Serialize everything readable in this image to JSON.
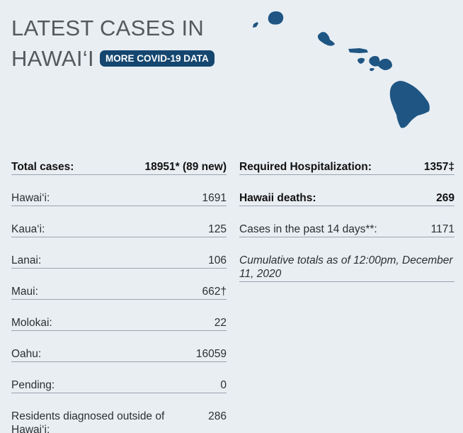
{
  "header": {
    "title_line1": "LATEST CASES IN",
    "title_line2": "HAWAI‘I",
    "more_button": "MORE COVID-19 DATA"
  },
  "map": {
    "icon": "hawaii-islands-map",
    "color": "#1e5583"
  },
  "left_rows": [
    {
      "label": "Total cases:",
      "value": "18951* (89 new)",
      "bold": true
    },
    {
      "label": "Hawai‘i:",
      "value": "1691"
    },
    {
      "label": "Kaua‘i:",
      "value": "125"
    },
    {
      "label": "Lanai:",
      "value": "106"
    },
    {
      "label": "Maui:",
      "value": "662†"
    },
    {
      "label": "Molokai:",
      "value": "22"
    },
    {
      "label": "Oahu:",
      "value": "16059"
    },
    {
      "label": "Pending:",
      "value": "0"
    },
    {
      "label": "Residents diagnosed outside of Hawai‘i:",
      "value": "286"
    }
  ],
  "right_rows": [
    {
      "label": "Required Hospitalization:",
      "value": "1357‡",
      "bold": true
    },
    {
      "label": "Hawaii deaths:",
      "value": "269",
      "bold": true
    },
    {
      "label": "Cases in the past 14 days**:",
      "value": "1171"
    }
  ],
  "note": "Cumulative totals as of 12:00pm, December 11, 2020",
  "colors": {
    "background": "#e9eef3",
    "button": "#15466f",
    "title": "#56595c",
    "divider": "#9aa3ad"
  }
}
